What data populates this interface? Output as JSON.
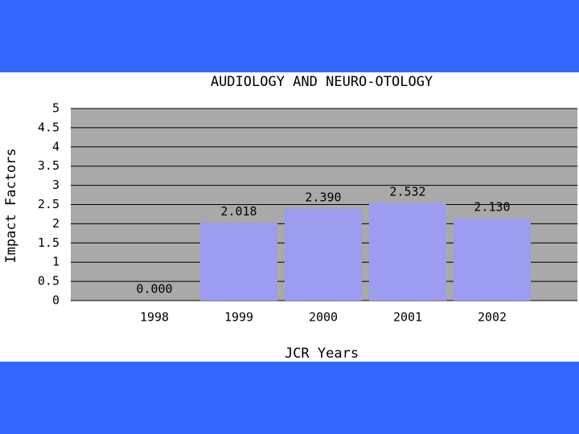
{
  "chart_data": {
    "type": "bar",
    "title": "AUDIOLOGY AND NEURO-OTOLOGY",
    "x_label": "JCR Years",
    "y_label": "Impact Factors",
    "categories": [
      "1998",
      "1999",
      "2000",
      "2001",
      "2002"
    ],
    "values": [
      0,
      2.018,
      2.39,
      2.532,
      2.13
    ],
    "value_labels": [
      "0.000",
      "2.018",
      "2.390",
      "2.532",
      "2.130"
    ],
    "color": "#9c9cf0",
    "ylim": [
      0,
      5
    ],
    "yticks": [
      0,
      0.5,
      1,
      1.5,
      2,
      2.5,
      3,
      3.5,
      4,
      4.5,
      5
    ],
    "grid": true
  }
}
